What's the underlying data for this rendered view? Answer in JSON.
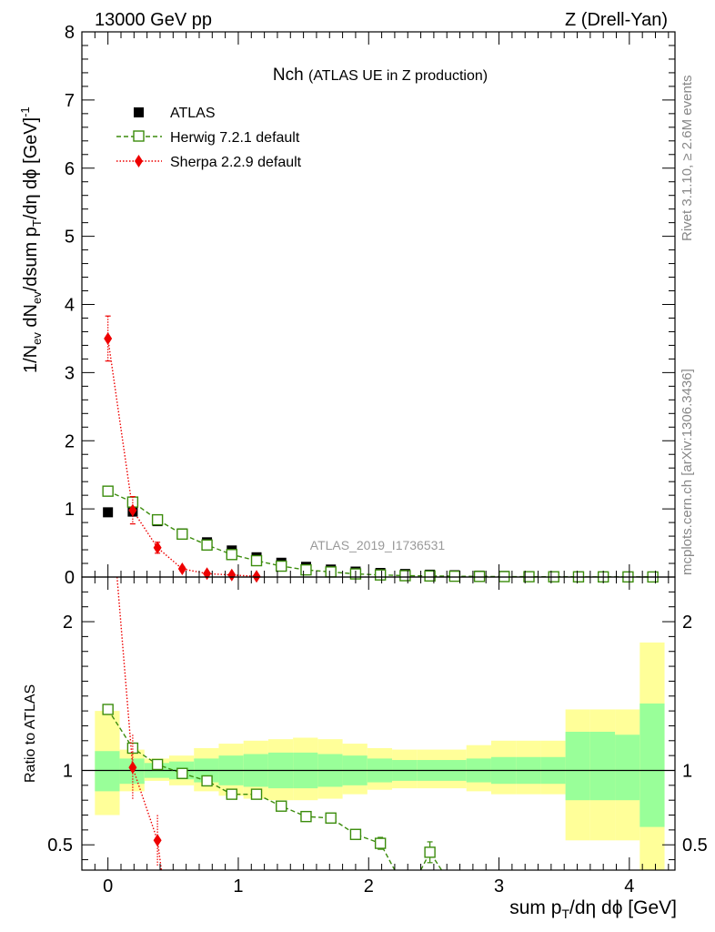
{
  "header": {
    "left": "13000 GeV pp",
    "right": "Z (Drell-Yan)"
  },
  "title": {
    "main": "Nch",
    "sub": "(ATLAS UE in Z production)"
  },
  "watermark": "ATLAS_2019_I1736531",
  "side_text": {
    "top": "Rivet 3.1.10, ≥ 2.6M events",
    "bottom": "mcplots.cern.ch [arXiv:1306.3436]"
  },
  "axes": {
    "xlabel": "sum p_T/dη dφ [GeV]",
    "ylabel_main": "1/N_ev dN_ev/dsum p_T/dη dφ [GeV]^-1",
    "ylabel_ratio": "Ratio to ATLAS"
  },
  "legend": {
    "placement": "top-left",
    "entries": [
      "ATLAS",
      "Herwig 7.2.1 default",
      "Sherpa 2.2.9 default"
    ]
  },
  "colors": {
    "atlas": "#000000",
    "herwig": "#3b8c0c",
    "sherpa": "#ee0000",
    "band_inner": "#99ff99",
    "band_outer": "#ffff99",
    "watermark": "#999999"
  },
  "chart_data": [
    {
      "type": "scatter",
      "panel": "main",
      "xlim": [
        -0.2,
        4.35
      ],
      "ylim": [
        0,
        8
      ],
      "yticks": [
        "0",
        "1",
        "2",
        "3",
        "4",
        "5",
        "6",
        "7",
        "8"
      ],
      "series": [
        {
          "name": "ATLAS",
          "x": [
            0.0,
            0.19,
            0.38,
            0.57,
            0.76,
            0.95,
            1.14,
            1.33,
            1.52,
            1.71,
            1.9,
            2.09,
            2.28,
            2.47,
            2.66,
            2.85,
            3.04,
            3.23,
            3.42,
            3.61,
            3.8,
            3.99,
            4.18
          ],
          "y": [
            0.95,
            0.96,
            0.82,
            0.64,
            0.51,
            0.39,
            0.29,
            0.21,
            0.15,
            0.11,
            0.08,
            0.06,
            0.045,
            0.035,
            0.027,
            0.021,
            0.016,
            0.013,
            0.01,
            0.008,
            0.006,
            0.005,
            0.004
          ]
        },
        {
          "name": "Herwig 7.2.1 default",
          "x": [
            0.0,
            0.19,
            0.38,
            0.57,
            0.76,
            0.95,
            1.14,
            1.33,
            1.52,
            1.71,
            1.9,
            2.09,
            2.28,
            2.47,
            2.66,
            2.85,
            3.04,
            3.23,
            3.42,
            3.61,
            3.8,
            3.99,
            4.18
          ],
          "y": [
            1.26,
            1.1,
            0.84,
            0.63,
            0.47,
            0.33,
            0.24,
            0.16,
            0.105,
            0.075,
            0.046,
            0.031,
            0.02,
            0.016,
            0.012,
            0.009,
            0.007,
            0.005,
            0.004,
            0.003,
            0.0025,
            0.002,
            0.0015
          ]
        },
        {
          "name": "Sherpa 2.2.9 default",
          "x": [
            0.0,
            0.19,
            0.38,
            0.57,
            0.76,
            0.95,
            1.14
          ],
          "y": [
            3.5,
            0.98,
            0.43,
            0.12,
            0.05,
            0.03,
            0.01
          ],
          "yerr": [
            0.33,
            0.2,
            0.08,
            0.03,
            0.02,
            0.01,
            0.005
          ]
        }
      ]
    },
    {
      "type": "scatter",
      "panel": "ratio",
      "xlim": [
        -0.2,
        4.35
      ],
      "ylim": [
        0.33,
        2.3
      ],
      "yticks": [
        "0.5",
        "1",
        "2"
      ],
      "xticks": [
        "0",
        "1",
        "2",
        "3",
        "4"
      ],
      "band": {
        "edges": [
          -0.1,
          0.09,
          0.28,
          0.47,
          0.66,
          0.85,
          1.04,
          1.23,
          1.42,
          1.61,
          1.8,
          1.99,
          2.18,
          2.37,
          2.56,
          2.75,
          2.94,
          3.13,
          3.32,
          3.51,
          3.7,
          3.89,
          4.08,
          4.27
        ],
        "inner_lo": [
          0.86,
          0.91,
          0.95,
          0.94,
          0.92,
          0.9,
          0.89,
          0.88,
          0.88,
          0.89,
          0.9,
          0.92,
          0.93,
          0.93,
          0.93,
          0.92,
          0.91,
          0.91,
          0.91,
          0.8,
          0.8,
          0.8,
          0.62
        ],
        "inner_hi": [
          1.13,
          1.08,
          1.05,
          1.06,
          1.08,
          1.1,
          1.11,
          1.12,
          1.12,
          1.11,
          1.1,
          1.08,
          1.07,
          1.07,
          1.07,
          1.08,
          1.09,
          1.09,
          1.09,
          1.26,
          1.26,
          1.24,
          1.45
        ],
        "outer_lo": [
          0.7,
          0.86,
          0.93,
          0.9,
          0.86,
          0.83,
          0.81,
          0.8,
          0.8,
          0.81,
          0.84,
          0.87,
          0.88,
          0.88,
          0.88,
          0.86,
          0.84,
          0.84,
          0.84,
          0.53,
          0.53,
          0.53,
          0.28
        ],
        "outer_hi": [
          1.4,
          1.14,
          1.08,
          1.1,
          1.15,
          1.18,
          1.2,
          1.21,
          1.22,
          1.21,
          1.18,
          1.15,
          1.14,
          1.14,
          1.14,
          1.17,
          1.2,
          1.2,
          1.2,
          1.41,
          1.41,
          1.41,
          1.86
        ]
      },
      "series": [
        {
          "name": "Herwig 7.2.1 default",
          "x": [
            0.0,
            0.19,
            0.38,
            0.57,
            0.76,
            0.95,
            1.14,
            1.33,
            1.52,
            1.71,
            1.9,
            2.09,
            2.47
          ],
          "y": [
            1.41,
            1.15,
            1.04,
            0.98,
            0.93,
            0.84,
            0.84,
            0.76,
            0.69,
            0.68,
            0.57,
            0.51,
            0.45
          ],
          "yerr": [
            0.01,
            0.01,
            0.01,
            0.01,
            0.01,
            0.01,
            0.01,
            0.01,
            0.02,
            0.03,
            0.03,
            0.04,
            0.07
          ]
        },
        {
          "name": "Sherpa 2.2.9 default",
          "x": [
            0.19,
            0.38
          ],
          "y": [
            1.02,
            0.53
          ],
          "yerr": [
            0.22,
            0.17
          ]
        }
      ]
    }
  ]
}
